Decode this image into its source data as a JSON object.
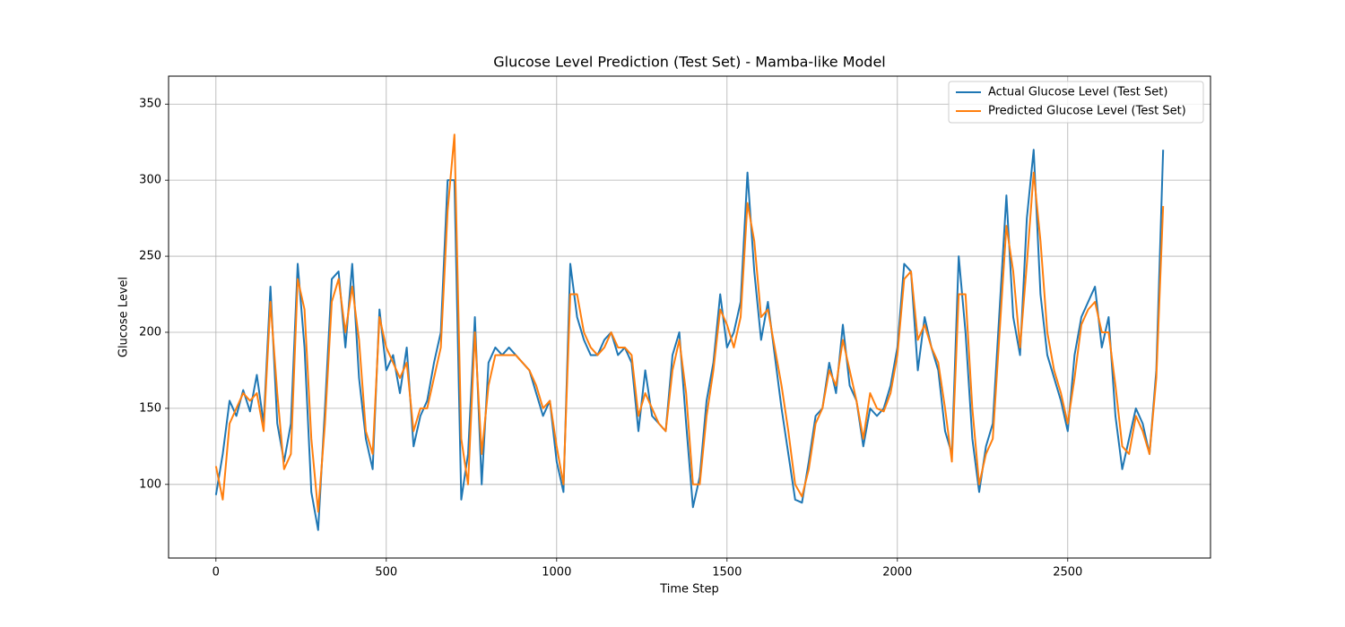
{
  "chart_data": {
    "type": "line",
    "title": "Glucose Level Prediction (Test Set) - Mamba-like Model",
    "x_label": "Time Step",
    "y_label": "Glucose Level",
    "x": [
      0,
      20,
      40,
      60,
      80,
      100,
      120,
      140,
      160,
      180,
      200,
      220,
      240,
      260,
      280,
      300,
      320,
      340,
      360,
      380,
      400,
      420,
      440,
      460,
      480,
      500,
      520,
      540,
      560,
      580,
      600,
      620,
      640,
      660,
      680,
      700,
      720,
      740,
      760,
      780,
      800,
      820,
      840,
      860,
      880,
      900,
      920,
      940,
      960,
      980,
      1000,
      1020,
      1040,
      1060,
      1080,
      1100,
      1120,
      1140,
      1160,
      1180,
      1200,
      1220,
      1240,
      1260,
      1280,
      1300,
      1320,
      1340,
      1360,
      1380,
      1400,
      1420,
      1440,
      1460,
      1480,
      1500,
      1520,
      1540,
      1560,
      1580,
      1600,
      1620,
      1640,
      1660,
      1680,
      1700,
      1720,
      1740,
      1760,
      1780,
      1800,
      1820,
      1840,
      1860,
      1880,
      1900,
      1920,
      1940,
      1960,
      1980,
      2000,
      2020,
      2040,
      2060,
      2080,
      2100,
      2120,
      2140,
      2160,
      2180,
      2200,
      2220,
      2240,
      2260,
      2280,
      2300,
      2320,
      2340,
      2360,
      2380,
      2400,
      2420,
      2440,
      2460,
      2480,
      2500,
      2520,
      2540,
      2560,
      2580,
      2600,
      2620,
      2640,
      2660,
      2680,
      2700,
      2720,
      2740,
      2760,
      2780
    ],
    "series": [
      {
        "name": "Actual Glucose Level (Test Set)",
        "color": "#1f77b4",
        "values": [
          93,
          120,
          155,
          145,
          162,
          148,
          172,
          140,
          230,
          140,
          115,
          140,
          245,
          190,
          95,
          70,
          150,
          235,
          240,
          190,
          245,
          170,
          130,
          110,
          215,
          175,
          185,
          160,
          190,
          125,
          145,
          155,
          180,
          200,
          300,
          300,
          90,
          120,
          210,
          100,
          180,
          190,
          185,
          190,
          185,
          180,
          175,
          160,
          145,
          155,
          115,
          95,
          245,
          210,
          195,
          185,
          185,
          195,
          200,
          185,
          190,
          180,
          135,
          175,
          145,
          140,
          135,
          185,
          200,
          140,
          85,
          105,
          155,
          180,
          225,
          190,
          200,
          220,
          305,
          240,
          195,
          220,
          185,
          150,
          120,
          90,
          88,
          115,
          145,
          150,
          180,
          160,
          205,
          165,
          155,
          125,
          150,
          145,
          150,
          165,
          190,
          245,
          240,
          175,
          210,
          190,
          175,
          135,
          120,
          250,
          200,
          130,
          95,
          125,
          140,
          215,
          290,
          210,
          185,
          275,
          320,
          225,
          185,
          170,
          155,
          135,
          185,
          210,
          220,
          230,
          190,
          210,
          145,
          110,
          130,
          150,
          140,
          120,
          175,
          320
        ]
      },
      {
        "name": "Predicted Glucose Level (Test Set)",
        "color": "#ff7f0e",
        "values": [
          112,
          90,
          140,
          150,
          160,
          155,
          160,
          135,
          220,
          160,
          110,
          120,
          235,
          215,
          130,
          82,
          140,
          220,
          235,
          200,
          230,
          195,
          135,
          120,
          210,
          190,
          180,
          170,
          180,
          135,
          150,
          150,
          170,
          190,
          280,
          330,
          130,
          100,
          200,
          120,
          165,
          185,
          185,
          185,
          185,
          180,
          175,
          165,
          150,
          155,
          125,
          100,
          225,
          225,
          200,
          190,
          185,
          190,
          200,
          190,
          190,
          185,
          145,
          160,
          150,
          140,
          135,
          175,
          195,
          160,
          100,
          100,
          145,
          175,
          215,
          205,
          190,
          210,
          285,
          260,
          210,
          215,
          190,
          165,
          135,
          100,
          92,
          110,
          140,
          150,
          175,
          165,
          195,
          175,
          155,
          130,
          160,
          150,
          148,
          160,
          185,
          235,
          240,
          195,
          205,
          190,
          180,
          150,
          115,
          225,
          225,
          150,
          100,
          120,
          130,
          200,
          270,
          240,
          190,
          245,
          305,
          260,
          200,
          175,
          160,
          140,
          170,
          205,
          215,
          220,
          200,
          200,
          165,
          125,
          120,
          145,
          135,
          120,
          170,
          283
        ]
      }
    ],
    "xlim": [
      -139,
      2919
    ],
    "ylim": [
      51.6,
      368.4
    ],
    "xticks": [
      0,
      500,
      1000,
      1500,
      2000,
      2500
    ],
    "yticks": [
      100,
      150,
      200,
      250,
      300,
      350
    ],
    "grid": true,
    "legend": "upper right"
  }
}
